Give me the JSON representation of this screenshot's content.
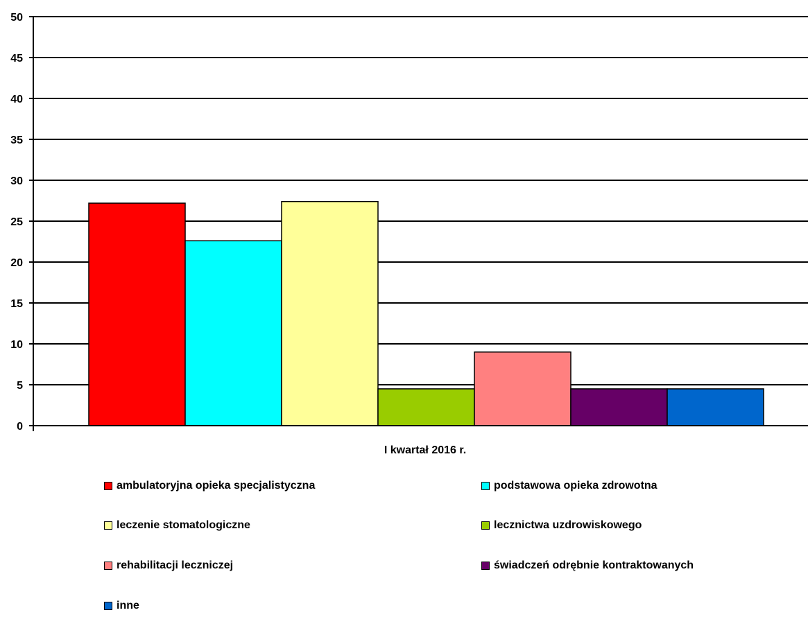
{
  "chart_data": {
    "type": "bar",
    "categories": [
      "I kwartał 2016 r."
    ],
    "series": [
      {
        "name": "ambulatoryjna opieka specjalistyczna",
        "color": "#FF0000",
        "values": [
          27.2
        ]
      },
      {
        "name": "podstawowa opieka zdrowotna",
        "color": "#00FFFF",
        "values": [
          22.6
        ]
      },
      {
        "name": "leczenie stomatologiczne",
        "color": "#FFFF99",
        "values": [
          27.4
        ]
      },
      {
        "name": "lecznictwa uzdrowiskowego",
        "color": "#99CC00",
        "values": [
          4.5
        ]
      },
      {
        "name": "rehabilitacji leczniczej",
        "color": "#FF8080",
        "values": [
          9.0
        ]
      },
      {
        "name": "świadczeń odrębnie kontraktowanych",
        "color": "#660066",
        "values": [
          4.5
        ]
      },
      {
        "name": "inne",
        "color": "#0066CC",
        "values": [
          4.5
        ]
      }
    ],
    "yticks": [
      "0",
      "5",
      "10",
      "15",
      "20",
      "25",
      "30",
      "35",
      "40",
      "45",
      "50"
    ],
    "ylim": [
      0,
      50
    ],
    "grid": true,
    "legend": "bottom",
    "title": "",
    "xlabel": "",
    "ylabel": ""
  }
}
